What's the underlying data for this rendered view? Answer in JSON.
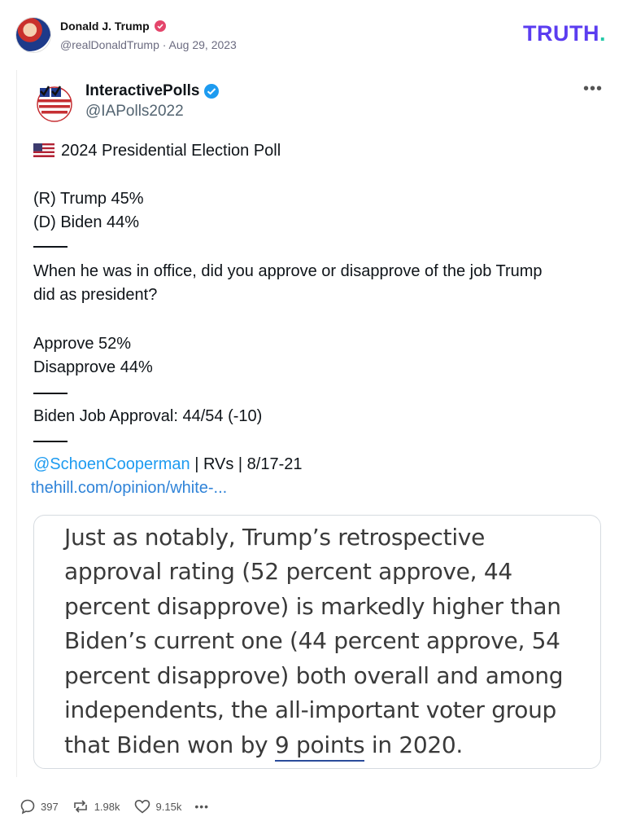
{
  "post": {
    "author_name": "Donald J. Trump",
    "author_handle": "@realDonaldTrump",
    "separator": "·",
    "date": "Aug 29, 2023",
    "brand_text": "TRUTH",
    "brand_dot": "."
  },
  "quoted_tweet": {
    "name": "InteractivePolls",
    "handle": "@IAPolls2022",
    "more": "•••",
    "headline": "2024 Presidential Election Poll",
    "line_trump": "(R) Trump 45%",
    "line_biden": "(D) Biden 44%",
    "question_line1": "When he was in office, did you approve or disapprove of the job Trump",
    "question_line2": "did as president?",
    "approve": "Approve 52%",
    "disapprove": "Disapprove 44%",
    "biden_approval": "Biden Job Approval: 44/54 (-10)",
    "source_mention": "@SchoenCooperman",
    "source_rest": " | RVs | 8/17-21",
    "link": "thehill.com/opinion/white-..."
  },
  "excerpt": {
    "lines": [
      "Just as notably, Trump’s retrospective",
      "approval rating (52 percent approve, 44",
      "percent disapprove) is markedly higher than",
      "Biden’s current one (44 percent approve, 54",
      "percent disapprove) both overall and among",
      "independents, the all-important voter group"
    ],
    "last_pre": "that Biden won by ",
    "last_underlined": "9 points",
    "last_post": " in 2020."
  },
  "actions": {
    "replies": "397",
    "retruths": "1.98k",
    "likes": "9.15k",
    "more": "•••"
  },
  "icons": {
    "verified_pink": "verified-badge-icon",
    "verified_blue": "verified-badge-icon",
    "flag": "us-flag-icon",
    "reply": "reply-icon",
    "retruth": "retruth-icon",
    "like": "heart-icon",
    "more": "more-icon"
  },
  "colors": {
    "brand": "#5b3df0",
    "brand_dot": "#24c9a8",
    "link": "#1d9bf0",
    "pink_badge": "#e4456b"
  }
}
